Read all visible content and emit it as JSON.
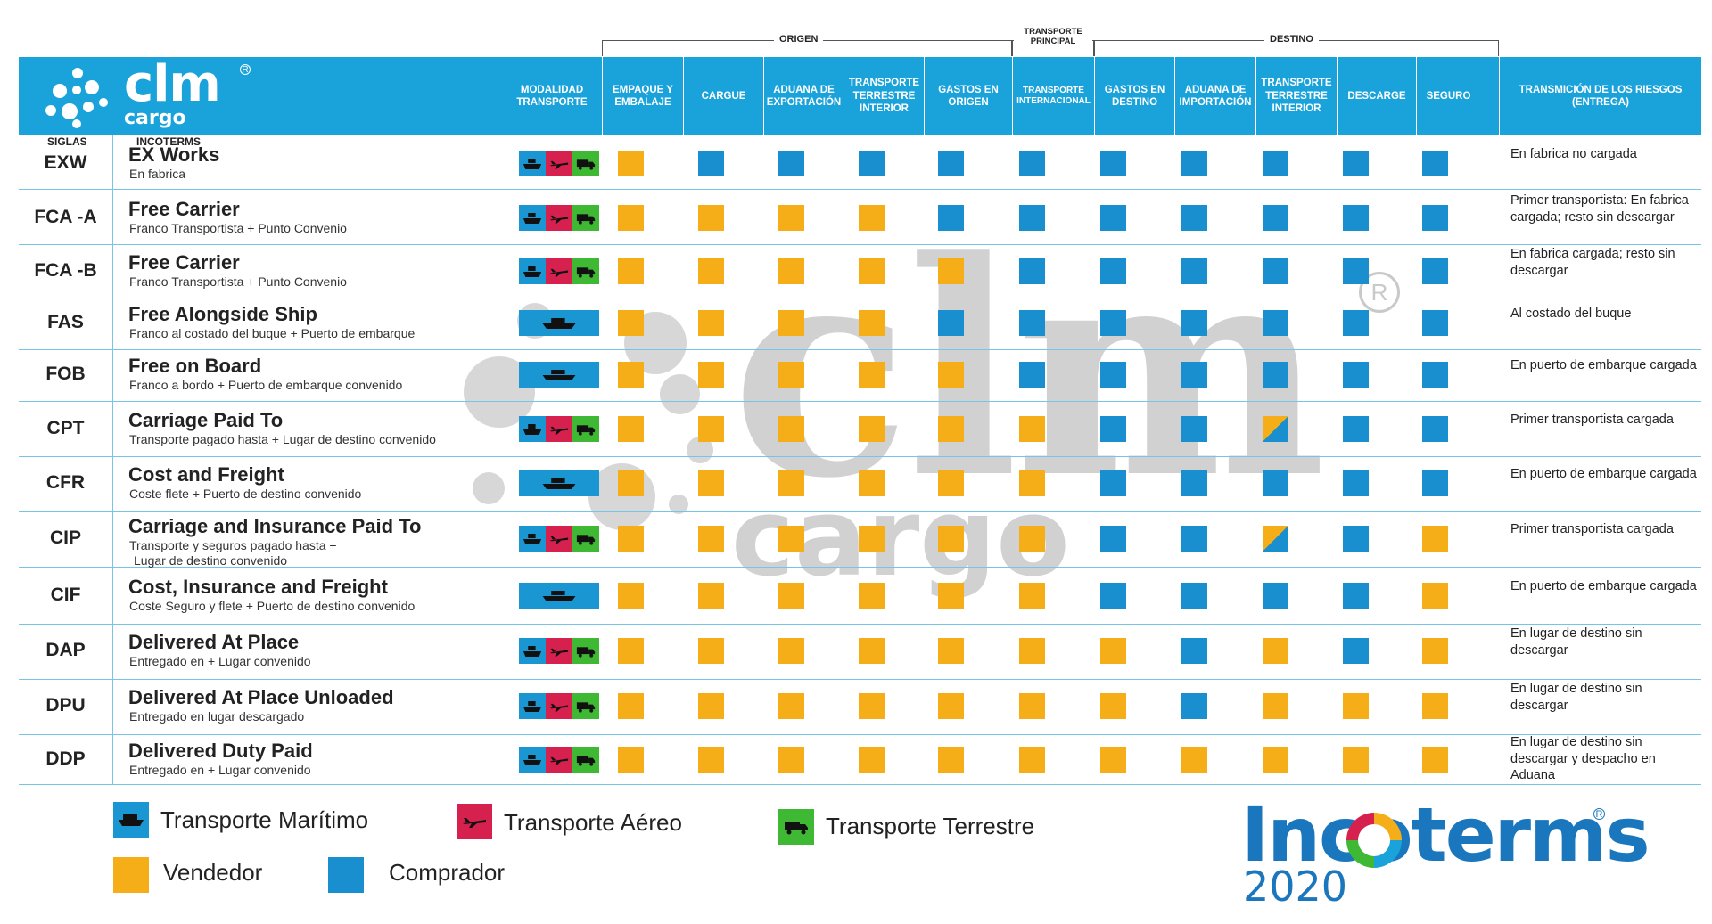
{
  "colors": {
    "vendedor": "#f5ad18",
    "comprador": "#1a8fd0",
    "maritimo": "#1a97d3",
    "aereo": "#d6204e",
    "terrestre": "#3fb934",
    "header": "#1aa3db"
  },
  "groups": {
    "origen": "ORIGEN",
    "principal": "TRANSPORTE PRINCIPAL",
    "destino": "DESTINO"
  },
  "logo": {
    "clm": "clm",
    "cargo": "cargo",
    "reg": "R"
  },
  "headers": {
    "modalidad": "MODALIDAD TRANSPORTE",
    "cols": [
      "EMPAQUE Y EMBALAJE",
      "CARGUE",
      "ADUANA DE EXPORTACIÓN",
      "TRANSPORTE TERRESTRE INTERIOR",
      "GASTOS EN ORIGEN",
      "TRANSPORTE INTERNACIONAL",
      "GASTOS EN DESTINO",
      "ADUANA DE IMPORTACIÓN",
      "TRANSPORTE TERRESTRE INTERIOR",
      "DESCARGE",
      "SEGURO"
    ],
    "riesgos": "TRANSMICIÓN DE LOS RIESGOS (ENTREGA)",
    "siglas": "SIGLAS",
    "incoterms": "INCOTERMS"
  },
  "rows": [
    {
      "sigla": "EXW",
      "title": "EX Works",
      "sub": "En fabrica",
      "mode": "multi",
      "cells": [
        "v",
        "c",
        "c",
        "c",
        "c",
        "c",
        "c",
        "c",
        "c",
        "c",
        "c"
      ],
      "risk": "En fabrica no cargada"
    },
    {
      "sigla": "FCA -A",
      "title": "Free Carrier",
      "sub": "Franco Transportista + Punto Convenio",
      "mode": "multi",
      "cells": [
        "v",
        "v",
        "v",
        "v",
        "c",
        "c",
        "c",
        "c",
        "c",
        "c",
        "c"
      ],
      "risk": "Primer transportista: En fabrica cargada; resto sin descargar"
    },
    {
      "sigla": "FCA -B",
      "title": "Free Carrier",
      "sub": "Franco Transportista + Punto Convenio",
      "mode": "multi",
      "cells": [
        "v",
        "v",
        "v",
        "v",
        "v",
        "c",
        "c",
        "c",
        "c",
        "c",
        "c"
      ],
      "risk": "En fabrica cargada; resto sin descargar"
    },
    {
      "sigla": "FAS",
      "title": "Free Alongside Ship",
      "sub": "Franco al costado del buque + Puerto de embarque",
      "mode": "sea",
      "cells": [
        "v",
        "v",
        "v",
        "v",
        "c",
        "c",
        "c",
        "c",
        "c",
        "c",
        "c"
      ],
      "risk": "Al costado del buque"
    },
    {
      "sigla": "FOB",
      "title": "Free on Board",
      "sub": "Franco a bordo + Puerto de embarque convenido",
      "mode": "sea",
      "cells": [
        "v",
        "v",
        "v",
        "v",
        "v",
        "c",
        "c",
        "c",
        "c",
        "c",
        "c"
      ],
      "risk": "En puerto de embarque cargada"
    },
    {
      "sigla": "CPT",
      "title": "Carriage Paid To",
      "sub": "Transporte pagado hasta + Lugar de destino convenido",
      "mode": "multi",
      "cells": [
        "v",
        "v",
        "v",
        "v",
        "v",
        "v",
        "c",
        "c",
        "s",
        "c",
        "c"
      ],
      "risk": "Primer transportista cargada"
    },
    {
      "sigla": "CFR",
      "title": "Cost and Freight",
      "sub": "Coste flete + Puerto de destino convenido",
      "mode": "sea",
      "cells": [
        "v",
        "v",
        "v",
        "v",
        "v",
        "v",
        "c",
        "c",
        "c",
        "c",
        "c"
      ],
      "risk": "En puerto de embarque cargada"
    },
    {
      "sigla": "CIP",
      "title": "Carriage and Insurance Paid To",
      "sub": "Transporte y seguros pagado hasta +",
      "sub2": "Lugar de destino convenido",
      "mode": "multi",
      "cells": [
        "v",
        "v",
        "v",
        "v",
        "v",
        "v",
        "c",
        "c",
        "s",
        "c",
        "v"
      ],
      "risk": "Primer transportista cargada"
    },
    {
      "sigla": "CIF",
      "title": "Cost, Insurance and Freight",
      "sub": "Coste Seguro y flete + Puerto de destino convenido",
      "mode": "sea",
      "cells": [
        "v",
        "v",
        "v",
        "v",
        "v",
        "v",
        "c",
        "c",
        "c",
        "c",
        "v"
      ],
      "risk": "En puerto de embarque cargada"
    },
    {
      "sigla": "DAP",
      "title": "Delivered At Place",
      "sub": "Entregado en + Lugar convenido",
      "mode": "multi",
      "cells": [
        "v",
        "v",
        "v",
        "v",
        "v",
        "v",
        "v",
        "c",
        "v",
        "c",
        "v"
      ],
      "risk": "En lugar de destino sin descargar"
    },
    {
      "sigla": "DPU",
      "title": "Delivered At Place Unloaded",
      "sub": "Entregado en lugar descargado",
      "mode": "multi",
      "cells": [
        "v",
        "v",
        "v",
        "v",
        "v",
        "v",
        "v",
        "c",
        "v",
        "v",
        "v"
      ],
      "risk": "En lugar de destino sin descargar"
    },
    {
      "sigla": "DDP",
      "title": "Delivered Duty Paid",
      "sub": "Entregado en + Lugar convenido",
      "mode": "multi",
      "cells": [
        "v",
        "v",
        "v",
        "v",
        "v",
        "v",
        "v",
        "v",
        "v",
        "v",
        "v"
      ],
      "risk": "En lugar de destino sin descargar y despacho en Aduana"
    }
  ],
  "legend": {
    "maritimo": "Transporte Marítimo",
    "aereo": "Transporte Aéreo",
    "terrestre": "Transporte Terrestre",
    "vendedor": "Vendedor",
    "comprador": "Comprador"
  },
  "incoterms_logo": {
    "name": "Incoterms",
    "year": "2020",
    "reg": "R"
  }
}
